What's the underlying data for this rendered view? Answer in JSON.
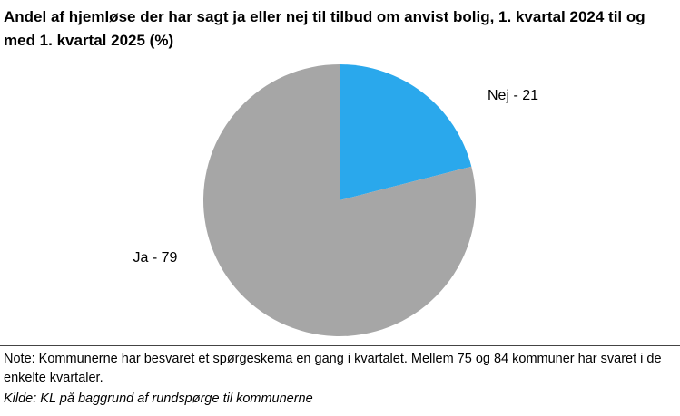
{
  "chart_data": {
    "type": "pie",
    "title": "Andel af hjemløse der har sagt ja eller nej til tilbud om anvist bolig, 1. kvartal 2024 til og med 1. kvartal 2025 (%)",
    "slices": [
      {
        "name": "Nej",
        "value": 21,
        "label": "Nej - 21",
        "color": "#2aa8ec"
      },
      {
        "name": "Ja",
        "value": 79,
        "label": "Ja - 79",
        "color": "#a6a6a6"
      }
    ]
  },
  "note": "Note: Kommunerne har besvaret et spørgeskema en gang i kvartalet. Mellem 75 og  84 kommuner har svaret i de enkelte kvartaler.",
  "source": "Kilde: KL på baggrund af rundspørge til kommunerne"
}
